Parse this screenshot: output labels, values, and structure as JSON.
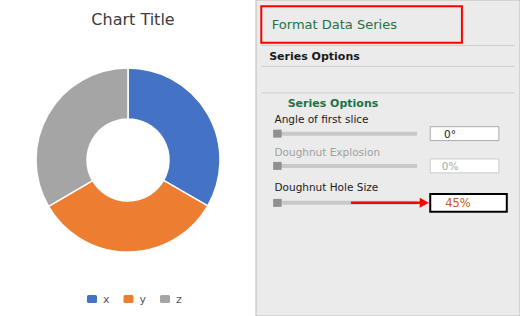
{
  "chart_data": {
    "type": "doughnut",
    "title": "Chart Title",
    "categories": [
      "x",
      "y",
      "z"
    ],
    "values": [
      0.333,
      0.333,
      0.334
    ],
    "colors": [
      "#4472C4",
      "#ED7D31",
      "#A5A5A5"
    ],
    "legend": "bottom",
    "annotations": [
      "Format Data Series",
      "Series Options",
      "Series Options",
      "Angle of first slice",
      "0°",
      "Doughnut Explosion",
      "0%",
      "Doughnut Hole Size",
      "45%"
    ]
  }
}
